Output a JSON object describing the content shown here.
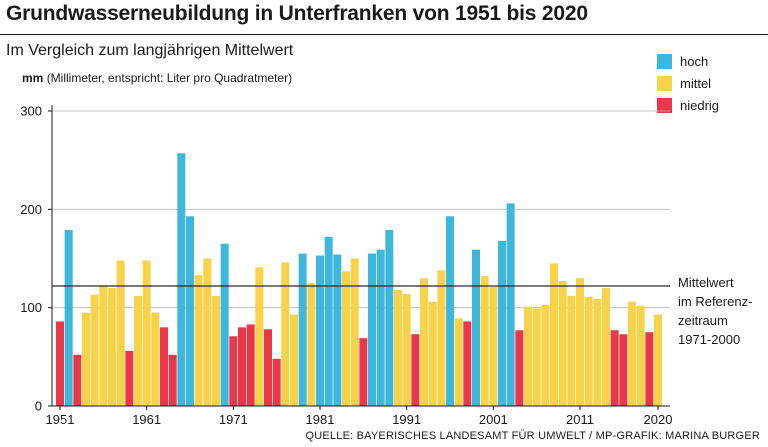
{
  "title": "Grundwasserneubildung in Unterfranken von 1951 bis 2020",
  "subtitle": "Im Vergleich zum langjährigen Mittelwert",
  "unit_bold": "mm",
  "unit_rest": "(Millimeter, entspricht: Liter pro Quadratmeter)",
  "legend": [
    {
      "label": "hoch",
      "color": "#3db8dc"
    },
    {
      "label": "mittel",
      "color": "#f8d34a"
    },
    {
      "label": "niedrig",
      "color": "#e8384a"
    }
  ],
  "mean_label": [
    "Mittelwert",
    "im Referenz-",
    "zeitraum",
    "1971-2000"
  ],
  "source": "QUELLE: BAYERISCHES LANDESAMT FÜR UMWELT / MP-GRAFIK: MARINA BURGER",
  "chart_data": {
    "type": "bar",
    "x_tick_labels": [
      "1951",
      "1961",
      "1971",
      "1981",
      "1991",
      "2001",
      "2011",
      "2020"
    ],
    "y_tick_labels": [
      "0",
      "100",
      "200",
      "300"
    ],
    "ylim": [
      0,
      300
    ],
    "reference_line": 122,
    "categories": [
      1951,
      1952,
      1953,
      1954,
      1955,
      1956,
      1957,
      1958,
      1959,
      1960,
      1961,
      1962,
      1963,
      1964,
      1965,
      1966,
      1967,
      1968,
      1969,
      1970,
      1971,
      1972,
      1973,
      1974,
      1975,
      1976,
      1977,
      1978,
      1979,
      1980,
      1981,
      1982,
      1983,
      1984,
      1985,
      1986,
      1987,
      1988,
      1989,
      1990,
      1991,
      1992,
      1993,
      1994,
      1995,
      1996,
      1997,
      1998,
      1999,
      2000,
      2001,
      2002,
      2003,
      2004,
      2005,
      2006,
      2007,
      2008,
      2009,
      2010,
      2011,
      2012,
      2013,
      2014,
      2015,
      2016,
      2017,
      2018,
      2019,
      2020
    ],
    "values": [
      86,
      179,
      52,
      95,
      113,
      122,
      120,
      148,
      56,
      112,
      148,
      95,
      80,
      52,
      257,
      193,
      133,
      150,
      112,
      165,
      71,
      80,
      83,
      141,
      78,
      48,
      146,
      93,
      155,
      125,
      153,
      172,
      154,
      137,
      150,
      69,
      155,
      159,
      179,
      118,
      114,
      73,
      130,
      106,
      138,
      193,
      89,
      86,
      159,
      132,
      121,
      168,
      206,
      77,
      101,
      99,
      103,
      145,
      127,
      112,
      130,
      111,
      109,
      120,
      77,
      73,
      106,
      102,
      75,
      93
    ],
    "categories_class": [
      "niedrig",
      "hoch",
      "niedrig",
      "mittel",
      "mittel",
      "mittel",
      "mittel",
      "mittel",
      "niedrig",
      "mittel",
      "mittel",
      "mittel",
      "niedrig",
      "niedrig",
      "hoch",
      "hoch",
      "mittel",
      "mittel",
      "mittel",
      "hoch",
      "niedrig",
      "niedrig",
      "niedrig",
      "mittel",
      "niedrig",
      "niedrig",
      "mittel",
      "mittel",
      "hoch",
      "mittel",
      "hoch",
      "hoch",
      "hoch",
      "mittel",
      "mittel",
      "niedrig",
      "hoch",
      "hoch",
      "hoch",
      "mittel",
      "mittel",
      "niedrig",
      "mittel",
      "mittel",
      "mittel",
      "hoch",
      "mittel",
      "niedrig",
      "hoch",
      "mittel",
      "mittel",
      "hoch",
      "hoch",
      "niedrig",
      "mittel",
      "mittel",
      "mittel",
      "mittel",
      "mittel",
      "mittel",
      "mittel",
      "mittel",
      "mittel",
      "mittel",
      "niedrig",
      "niedrig",
      "mittel",
      "mittel",
      "niedrig",
      "mittel"
    ]
  }
}
